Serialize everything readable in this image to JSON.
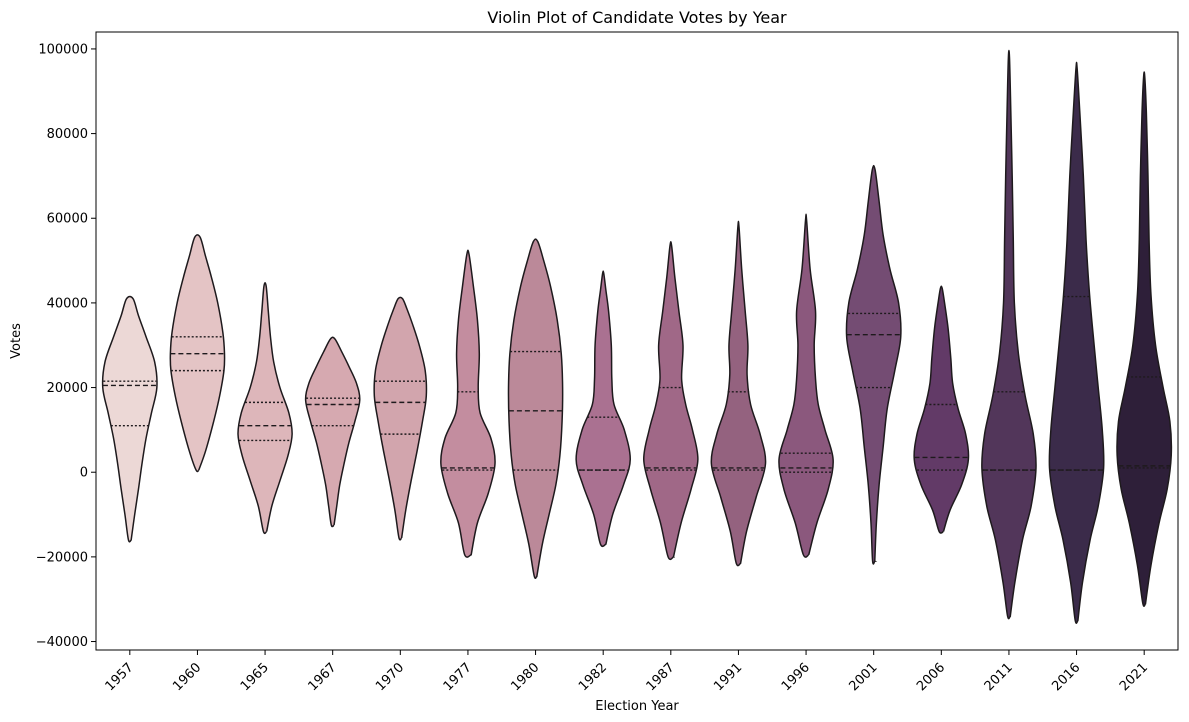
{
  "chart_data": {
    "type": "violin",
    "title": "Violin Plot of Candidate Votes by Year",
    "xlabel": "Election Year",
    "ylabel": "Votes",
    "ylim": [
      -42000,
      104000
    ],
    "yticks": [
      -40000,
      -20000,
      0,
      20000,
      40000,
      60000,
      80000,
      100000
    ],
    "grid": false,
    "legend": "none",
    "inner": "quartile",
    "categories": [
      "1957",
      "1960",
      "1965",
      "1967",
      "1970",
      "1977",
      "1980",
      "1982",
      "1987",
      "1991",
      "1996",
      "2001",
      "2006",
      "2011",
      "2016",
      "2021"
    ],
    "colors": [
      "#ecd8d6",
      "#e4c4c5",
      "#ddb6ba",
      "#d6a9b0",
      "#d2a5ad",
      "#c38d9f",
      "#bb8999",
      "#aa7191",
      "#a06887",
      "#94627f",
      "#8b587d",
      "#744c73",
      "#623a67",
      "#52365a",
      "#3b2b4a",
      "#2e1f39"
    ],
    "violins": [
      {
        "min": -16000,
        "max": 41000,
        "q1": 11000,
        "median": 20500,
        "q3": 21500,
        "density": [
          [
            -16000,
            0.05
          ],
          [
            -10000,
            0.18
          ],
          [
            -4000,
            0.32
          ],
          [
            2000,
            0.45
          ],
          [
            8000,
            0.6
          ],
          [
            14000,
            0.8
          ],
          [
            20000,
            1.0
          ],
          [
            26000,
            0.92
          ],
          [
            32000,
            0.6
          ],
          [
            37000,
            0.32
          ],
          [
            41000,
            0.12
          ]
        ]
      },
      {
        "min": 500,
        "max": 55500,
        "q1": 24000,
        "median": 28000,
        "q3": 32000,
        "density": [
          [
            500,
            0.05
          ],
          [
            5000,
            0.3
          ],
          [
            12000,
            0.6
          ],
          [
            18000,
            0.82
          ],
          [
            24000,
            0.98
          ],
          [
            28000,
            1.0
          ],
          [
            33000,
            0.94
          ],
          [
            40000,
            0.75
          ],
          [
            46000,
            0.52
          ],
          [
            51000,
            0.3
          ],
          [
            55500,
            0.1
          ]
        ]
      },
      {
        "min": -14000,
        "max": 44000,
        "q1": 7500,
        "median": 11000,
        "q3": 16500,
        "density": [
          [
            -14000,
            0.06
          ],
          [
            -8000,
            0.25
          ],
          [
            -2000,
            0.55
          ],
          [
            4000,
            0.85
          ],
          [
            9000,
            1.0
          ],
          [
            14000,
            0.88
          ],
          [
            20000,
            0.55
          ],
          [
            26000,
            0.32
          ],
          [
            32000,
            0.2
          ],
          [
            38000,
            0.12
          ],
          [
            44000,
            0.04
          ]
        ]
      },
      {
        "min": -12500,
        "max": 31500,
        "q1": 11000,
        "median": 16000,
        "q3": 17500,
        "density": [
          [
            -12500,
            0.05
          ],
          [
            -8000,
            0.15
          ],
          [
            -3000,
            0.26
          ],
          [
            2000,
            0.42
          ],
          [
            7000,
            0.6
          ],
          [
            12000,
            0.82
          ],
          [
            17000,
            1.0
          ],
          [
            21000,
            0.88
          ],
          [
            25000,
            0.6
          ],
          [
            28500,
            0.33
          ],
          [
            31500,
            0.08
          ]
        ]
      },
      {
        "min": -15500,
        "max": 41000,
        "q1": 9000,
        "median": 16500,
        "q3": 21500,
        "density": [
          [
            -15500,
            0.05
          ],
          [
            -9000,
            0.2
          ],
          [
            -2000,
            0.4
          ],
          [
            5000,
            0.62
          ],
          [
            12000,
            0.82
          ],
          [
            18000,
            0.96
          ],
          [
            24000,
            0.92
          ],
          [
            30000,
            0.7
          ],
          [
            35000,
            0.45
          ],
          [
            38500,
            0.25
          ],
          [
            41000,
            0.08
          ]
        ]
      },
      {
        "min": -19500,
        "max": 51500,
        "q1": 500,
        "median": 1000,
        "q3": 19000,
        "density": [
          [
            -19500,
            0.12
          ],
          [
            -12000,
            0.35
          ],
          [
            -5000,
            0.75
          ],
          [
            2000,
            1.0
          ],
          [
            8000,
            0.85
          ],
          [
            14000,
            0.45
          ],
          [
            20000,
            0.38
          ],
          [
            28000,
            0.42
          ],
          [
            36000,
            0.35
          ],
          [
            44000,
            0.2
          ],
          [
            51500,
            0.04
          ]
        ]
      },
      {
        "min": -24500,
        "max": 54500,
        "q1": 500,
        "median": 14500,
        "q3": 28500,
        "density": [
          [
            -24500,
            0.05
          ],
          [
            -17000,
            0.25
          ],
          [
            -10000,
            0.5
          ],
          [
            -3000,
            0.75
          ],
          [
            4000,
            0.9
          ],
          [
            12000,
            0.98
          ],
          [
            20000,
            1.0
          ],
          [
            28000,
            0.95
          ],
          [
            36000,
            0.8
          ],
          [
            44000,
            0.55
          ],
          [
            50000,
            0.3
          ],
          [
            54500,
            0.08
          ]
        ]
      },
      {
        "min": -17000,
        "max": 47000,
        "q1": 500,
        "median": 500,
        "q3": 13000,
        "density": [
          [
            -17000,
            0.1
          ],
          [
            -10000,
            0.35
          ],
          [
            -3000,
            0.75
          ],
          [
            3000,
            1.0
          ],
          [
            10000,
            0.78
          ],
          [
            16000,
            0.4
          ],
          [
            22000,
            0.32
          ],
          [
            30000,
            0.3
          ],
          [
            38000,
            0.2
          ],
          [
            43000,
            0.1
          ],
          [
            47000,
            0.02
          ]
        ]
      },
      {
        "min": -20000,
        "max": 53500,
        "q1": 500,
        "median": 1000,
        "q3": 20000,
        "density": [
          [
            -20000,
            0.1
          ],
          [
            -12000,
            0.38
          ],
          [
            -4000,
            0.75
          ],
          [
            3000,
            1.0
          ],
          [
            10000,
            0.8
          ],
          [
            16000,
            0.55
          ],
          [
            22000,
            0.4
          ],
          [
            30000,
            0.45
          ],
          [
            38000,
            0.3
          ],
          [
            46000,
            0.15
          ],
          [
            53500,
            0.03
          ]
        ]
      },
      {
        "min": -21500,
        "max": 58000,
        "q1": 500,
        "median": 1000,
        "q3": 19000,
        "density": [
          [
            -21500,
            0.08
          ],
          [
            -14000,
            0.3
          ],
          [
            -6000,
            0.65
          ],
          [
            2000,
            1.0
          ],
          [
            9000,
            0.8
          ],
          [
            16000,
            0.45
          ],
          [
            23000,
            0.32
          ],
          [
            30000,
            0.35
          ],
          [
            38000,
            0.25
          ],
          [
            48000,
            0.12
          ],
          [
            58000,
            0.02
          ]
        ]
      },
      {
        "min": -19500,
        "max": 59500,
        "q1": 0,
        "median": 1000,
        "q3": 4500,
        "density": [
          [
            -19500,
            0.1
          ],
          [
            -12000,
            0.4
          ],
          [
            -4000,
            0.82
          ],
          [
            3000,
            1.0
          ],
          [
            10000,
            0.7
          ],
          [
            16000,
            0.45
          ],
          [
            22000,
            0.35
          ],
          [
            30000,
            0.3
          ],
          [
            38000,
            0.35
          ],
          [
            48000,
            0.15
          ],
          [
            59500,
            0.02
          ]
        ]
      },
      {
        "min": -21000,
        "max": 71500,
        "q1": 20000,
        "median": 32500,
        "q3": 37500,
        "density": [
          [
            -21000,
            0.04
          ],
          [
            -12000,
            0.1
          ],
          [
            -3000,
            0.2
          ],
          [
            6000,
            0.35
          ],
          [
            15000,
            0.5
          ],
          [
            24000,
            0.78
          ],
          [
            32000,
            1.0
          ],
          [
            40000,
            0.92
          ],
          [
            48000,
            0.6
          ],
          [
            56000,
            0.35
          ],
          [
            64000,
            0.2
          ],
          [
            71500,
            0.05
          ]
        ]
      },
      {
        "min": -14000,
        "max": 43500,
        "q1": 500,
        "median": 3500,
        "q3": 16000,
        "density": [
          [
            -14000,
            0.08
          ],
          [
            -9000,
            0.32
          ],
          [
            -3000,
            0.75
          ],
          [
            3000,
            1.0
          ],
          [
            9000,
            0.9
          ],
          [
            15000,
            0.62
          ],
          [
            21000,
            0.42
          ],
          [
            27000,
            0.35
          ],
          [
            34000,
            0.25
          ],
          [
            40000,
            0.12
          ],
          [
            43500,
            0.03
          ]
        ]
      },
      {
        "min": -34000,
        "max": 98000,
        "q1": 500,
        "median": 500,
        "q3": 19000,
        "density": [
          [
            -34000,
            0.05
          ],
          [
            -26000,
            0.22
          ],
          [
            -16000,
            0.5
          ],
          [
            -8000,
            0.82
          ],
          [
            1000,
            1.0
          ],
          [
            9000,
            0.9
          ],
          [
            18000,
            0.6
          ],
          [
            28000,
            0.35
          ],
          [
            40000,
            0.2
          ],
          [
            55000,
            0.16
          ],
          [
            70000,
            0.12
          ],
          [
            85000,
            0.07
          ],
          [
            98000,
            0.02
          ]
        ]
      },
      {
        "min": -35000,
        "max": 95500,
        "q1": 500,
        "median": 500,
        "q3": 41500,
        "density": [
          [
            -35000,
            0.05
          ],
          [
            -26000,
            0.22
          ],
          [
            -16000,
            0.5
          ],
          [
            -8000,
            0.8
          ],
          [
            1000,
            1.0
          ],
          [
            10000,
            0.95
          ],
          [
            20000,
            0.8
          ],
          [
            30000,
            0.65
          ],
          [
            42000,
            0.48
          ],
          [
            55000,
            0.35
          ],
          [
            70000,
            0.25
          ],
          [
            85000,
            0.12
          ],
          [
            95500,
            0.02
          ]
        ]
      },
      {
        "min": -31000,
        "max": 93500,
        "q1": 1000,
        "median": 1500,
        "q3": 22500,
        "density": [
          [
            -31000,
            0.05
          ],
          [
            -22000,
            0.25
          ],
          [
            -12000,
            0.55
          ],
          [
            -4000,
            0.85
          ],
          [
            4000,
            1.0
          ],
          [
            12000,
            0.95
          ],
          [
            20000,
            0.7
          ],
          [
            30000,
            0.42
          ],
          [
            42000,
            0.25
          ],
          [
            55000,
            0.18
          ],
          [
            70000,
            0.14
          ],
          [
            85000,
            0.08
          ],
          [
            93500,
            0.02
          ]
        ]
      }
    ]
  }
}
